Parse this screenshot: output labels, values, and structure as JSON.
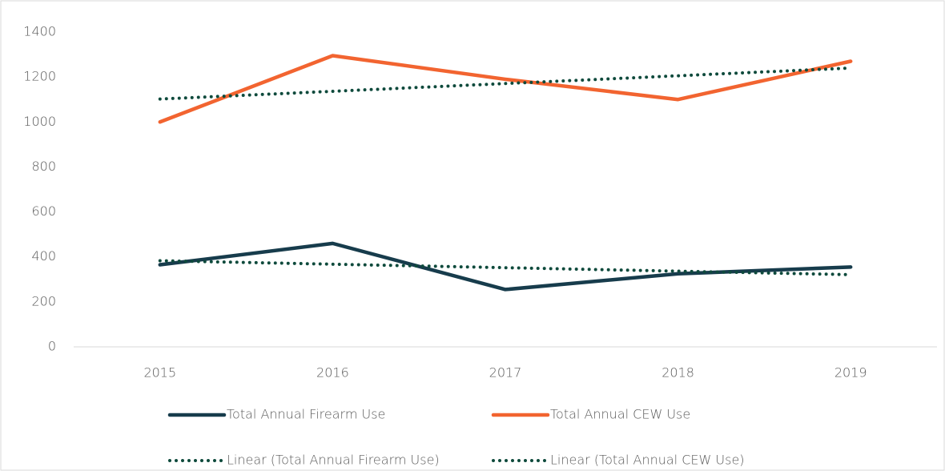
{
  "chart_data": {
    "type": "line",
    "categories": [
      "2015",
      "2016",
      "2017",
      "2018",
      "2019"
    ],
    "series": [
      {
        "name": "Total Annual Firearm Use",
        "color": "#173c4c",
        "dash": "solid",
        "values": [
          365,
          460,
          255,
          325,
          355
        ]
      },
      {
        "name": "Total Annual CEW Use",
        "color": "#f26430",
        "dash": "solid",
        "values": [
          1000,
          1295,
          1190,
          1100,
          1270
        ]
      },
      {
        "name": "Linear (Total Annual Firearm Use)",
        "color": "#0e4a3c",
        "dash": "dotted",
        "values": [
          383,
          367.5,
          352,
          336.5,
          321
        ]
      },
      {
        "name": "Linear (Total Annual CEW Use)",
        "color": "#0e4a3c",
        "dash": "dotted",
        "values": [
          1102,
          1136.5,
          1171,
          1205.5,
          1240
        ]
      }
    ],
    "ylim": [
      0,
      1400
    ],
    "yticks": [
      0,
      200,
      400,
      600,
      800,
      1000,
      1200,
      1400
    ],
    "grid": false
  }
}
